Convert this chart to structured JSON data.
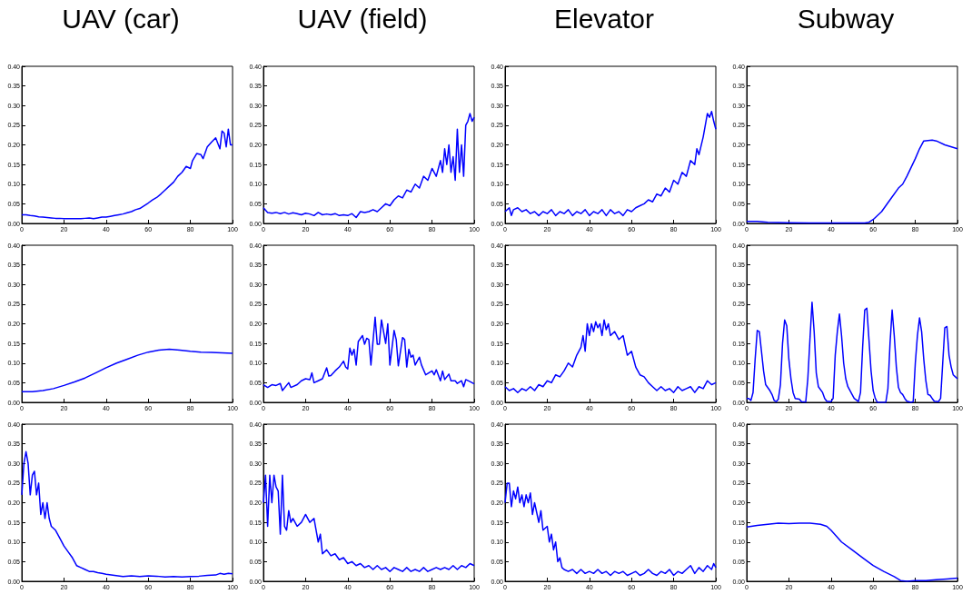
{
  "chart_data": [
    {
      "type": "line",
      "title": "UAV (car)",
      "color": "#0000ff",
      "xlim": [
        0,
        100
      ],
      "xticks": [
        0,
        20,
        40,
        60,
        80,
        100
      ],
      "ylim": [
        0,
        0.4
      ],
      "yticks": [
        {
          "value": 0,
          "label": "0.00"
        },
        0.05,
        {
          "value": 0.1,
          "label": "0.10"
        },
        0.15,
        {
          "value": 0.2,
          "label": "0.20"
        },
        0.25,
        {
          "value": 0.3,
          "label": "0.30"
        },
        0.35,
        {
          "value": 0.4,
          "label": "0.40"
        }
      ],
      "x": [
        0,
        2,
        4,
        6,
        8,
        10,
        12,
        14,
        16,
        18,
        20,
        22,
        24,
        26,
        28,
        30,
        32,
        34,
        36,
        38,
        40,
        42,
        44,
        46,
        48,
        50,
        52,
        54,
        56,
        58,
        60,
        62,
        64,
        66,
        68,
        70,
        72,
        74,
        76,
        78,
        80,
        81,
        83,
        85,
        86,
        88,
        90,
        92,
        94,
        95,
        96,
        97,
        98,
        99,
        100
      ],
      "values": [
        0.022,
        0.022,
        0.02,
        0.019,
        0.017,
        0.016,
        0.015,
        0.014,
        0.013,
        0.013,
        0.012,
        0.012,
        0.012,
        0.012,
        0.012,
        0.013,
        0.014,
        0.012,
        0.014,
        0.016,
        0.016,
        0.018,
        0.02,
        0.022,
        0.024,
        0.027,
        0.03,
        0.035,
        0.038,
        0.045,
        0.052,
        0.06,
        0.066,
        0.075,
        0.085,
        0.095,
        0.105,
        0.12,
        0.13,
        0.145,
        0.14,
        0.16,
        0.178,
        0.175,
        0.165,
        0.195,
        0.207,
        0.218,
        0.19,
        0.235,
        0.23,
        0.195,
        0.24,
        0.2,
        0.2
      ]
    },
    {
      "type": "line",
      "title": "UAV (field)",
      "color": "#0000ff",
      "xlim": [
        0,
        100
      ],
      "xticks": [
        0,
        20,
        40,
        60,
        80,
        100
      ],
      "ylim": [
        0,
        0.4
      ],
      "yticks": [
        {
          "value": 0,
          "label": "0.00"
        },
        0.05,
        {
          "value": 0.1,
          "label": "0.10"
        },
        0.15,
        {
          "value": 0.2,
          "label": "0.20"
        },
        0.25,
        {
          "value": 0.3,
          "label": "0.30"
        },
        0.35,
        {
          "value": 0.4,
          "label": "0.40"
        }
      ],
      "x": [
        0,
        2,
        4,
        6,
        8,
        10,
        12,
        14,
        16,
        18,
        20,
        22,
        24,
        26,
        28,
        30,
        32,
        34,
        36,
        38,
        40,
        42,
        44,
        46,
        48,
        50,
        52,
        54,
        56,
        58,
        60,
        62,
        64,
        66,
        68,
        70,
        72,
        74,
        76,
        78,
        80,
        82,
        84,
        85,
        86,
        87,
        88,
        89,
        90,
        91,
        92,
        93,
        94,
        95,
        96,
        97,
        98,
        99,
        100
      ],
      "values": [
        0.04,
        0.028,
        0.026,
        0.028,
        0.025,
        0.028,
        0.024,
        0.027,
        0.025,
        0.022,
        0.026,
        0.024,
        0.02,
        0.028,
        0.022,
        0.024,
        0.022,
        0.025,
        0.02,
        0.022,
        0.02,
        0.025,
        0.015,
        0.03,
        0.028,
        0.03,
        0.035,
        0.03,
        0.04,
        0.05,
        0.045,
        0.06,
        0.07,
        0.065,
        0.085,
        0.08,
        0.1,
        0.09,
        0.12,
        0.11,
        0.14,
        0.12,
        0.16,
        0.13,
        0.19,
        0.15,
        0.2,
        0.13,
        0.17,
        0.11,
        0.24,
        0.13,
        0.2,
        0.12,
        0.25,
        0.26,
        0.28,
        0.26,
        0.27
      ]
    },
    {
      "type": "line",
      "title": "Elevator",
      "color": "#0000ff",
      "xlim": [
        0,
        100
      ],
      "xticks": [
        0,
        20,
        40,
        60,
        80,
        100
      ],
      "ylim": [
        0,
        0.4
      ],
      "yticks": [
        {
          "value": 0,
          "label": "0.00"
        },
        0.05,
        {
          "value": 0.1,
          "label": "0.10"
        },
        0.15,
        {
          "value": 0.2,
          "label": "0.20"
        },
        0.25,
        {
          "value": 0.3,
          "label": "0.30"
        },
        0.35,
        {
          "value": 0.4,
          "label": "0.40"
        }
      ],
      "x": [
        0,
        2,
        3,
        4,
        6,
        8,
        10,
        12,
        14,
        16,
        18,
        20,
        22,
        24,
        26,
        28,
        30,
        32,
        34,
        36,
        38,
        40,
        42,
        44,
        46,
        48,
        50,
        52,
        54,
        56,
        58,
        60,
        62,
        64,
        66,
        68,
        70,
        72,
        74,
        76,
        78,
        80,
        82,
        84,
        86,
        88,
        90,
        91,
        92,
        94,
        96,
        97,
        98,
        99,
        100
      ],
      "values": [
        0.03,
        0.04,
        0.02,
        0.035,
        0.04,
        0.03,
        0.035,
        0.025,
        0.03,
        0.02,
        0.03,
        0.025,
        0.035,
        0.02,
        0.03,
        0.025,
        0.035,
        0.02,
        0.03,
        0.025,
        0.035,
        0.02,
        0.03,
        0.025,
        0.035,
        0.02,
        0.035,
        0.025,
        0.03,
        0.02,
        0.035,
        0.03,
        0.04,
        0.045,
        0.05,
        0.06,
        0.055,
        0.075,
        0.07,
        0.09,
        0.08,
        0.11,
        0.1,
        0.13,
        0.12,
        0.16,
        0.15,
        0.19,
        0.175,
        0.22,
        0.28,
        0.27,
        0.285,
        0.26,
        0.24
      ]
    },
    {
      "type": "line",
      "title": "Subway",
      "color": "#0000ff",
      "xlim": [
        0,
        100
      ],
      "xticks": [
        0,
        20,
        40,
        60,
        80,
        100
      ],
      "ylim": [
        0,
        0.4
      ],
      "yticks": [
        {
          "value": 0,
          "label": "0.00"
        },
        0.05,
        {
          "value": 0.1,
          "label": "0.10"
        },
        0.15,
        {
          "value": 0.2,
          "label": "0.20"
        },
        0.25,
        {
          "value": 0.3,
          "label": "0.30"
        },
        0.35,
        {
          "value": 0.4,
          "label": "0.40"
        }
      ],
      "x": [
        0,
        5,
        10,
        20,
        30,
        40,
        50,
        56,
        58,
        60,
        64,
        68,
        72,
        74,
        76,
        80,
        82,
        84,
        88,
        90,
        94,
        100
      ],
      "values": [
        0.005,
        0.005,
        0.003,
        0.002,
        0.001,
        0.001,
        0.001,
        0.001,
        0.003,
        0.01,
        0.03,
        0.06,
        0.09,
        0.1,
        0.12,
        0.165,
        0.19,
        0.21,
        0.212,
        0.21,
        0.2,
        0.19
      ]
    },
    {
      "type": "line",
      "color": "#0000ff",
      "xlim": [
        0,
        100
      ],
      "xticks": [
        0,
        20,
        40,
        60,
        80,
        100
      ],
      "ylim": [
        0,
        0.4
      ],
      "yticks": [
        {
          "value": 0,
          "label": "0.00"
        },
        0.05,
        {
          "value": 0.1,
          "label": "0.10"
        },
        0.15,
        {
          "value": 0.2,
          "label": "0.20"
        },
        0.25,
        {
          "value": 0.3,
          "label": "0.30"
        },
        0.35,
        {
          "value": 0.4,
          "label": "0.40"
        }
      ],
      "x": [
        0,
        5,
        10,
        15,
        20,
        25,
        30,
        35,
        40,
        45,
        50,
        55,
        60,
        65,
        70,
        75,
        80,
        85,
        90,
        95,
        100
      ],
      "values": [
        0.027,
        0.027,
        0.03,
        0.035,
        0.043,
        0.052,
        0.062,
        0.075,
        0.088,
        0.1,
        0.11,
        0.12,
        0.128,
        0.133,
        0.135,
        0.133,
        0.13,
        0.128,
        0.127,
        0.126,
        0.125
      ]
    },
    {
      "type": "line",
      "color": "#0000ff",
      "xlim": [
        0,
        100
      ],
      "xticks": [
        0,
        20,
        40,
        60,
        80,
        100
      ],
      "ylim": [
        0,
        0.4
      ],
      "yticks": [
        {
          "value": 0,
          "label": "0.00"
        },
        0.05,
        {
          "value": 0.1,
          "label": "0.10"
        },
        0.15,
        {
          "value": 0.2,
          "label": "0.20"
        },
        0.25,
        {
          "value": 0.3,
          "label": "0.30"
        },
        0.35,
        {
          "value": 0.4,
          "label": "0.40"
        }
      ],
      "x": [
        0,
        2,
        4,
        6,
        8,
        9,
        12,
        13,
        16,
        18,
        20,
        22,
        23,
        24,
        26,
        28,
        30,
        31,
        32,
        34,
        36,
        38,
        39,
        40,
        41,
        42,
        43,
        44,
        45,
        47,
        48,
        49,
        50,
        51,
        53,
        54,
        55,
        56,
        58,
        59,
        60,
        62,
        63,
        64,
        66,
        67,
        68,
        69,
        70,
        71,
        72,
        74,
        75,
        77,
        80,
        81,
        82,
        84,
        85,
        86,
        88,
        89,
        91,
        92,
        94,
        95,
        96,
        98,
        100
      ],
      "values": [
        0.045,
        0.038,
        0.045,
        0.043,
        0.048,
        0.03,
        0.05,
        0.038,
        0.045,
        0.055,
        0.06,
        0.058,
        0.075,
        0.05,
        0.055,
        0.06,
        0.088,
        0.067,
        0.068,
        0.08,
        0.09,
        0.105,
        0.09,
        0.085,
        0.138,
        0.12,
        0.135,
        0.095,
        0.155,
        0.17,
        0.148,
        0.163,
        0.16,
        0.095,
        0.217,
        0.148,
        0.148,
        0.21,
        0.15,
        0.2,
        0.095,
        0.183,
        0.16,
        0.093,
        0.165,
        0.16,
        0.09,
        0.135,
        0.115,
        0.12,
        0.095,
        0.115,
        0.095,
        0.07,
        0.08,
        0.07,
        0.083,
        0.055,
        0.08,
        0.058,
        0.072,
        0.055,
        0.055,
        0.048,
        0.055,
        0.04,
        0.058,
        0.053,
        0.047
      ]
    },
    {
      "type": "line",
      "color": "#0000ff",
      "xlim": [
        0,
        100
      ],
      "xticks": [
        0,
        20,
        40,
        60,
        80,
        100
      ],
      "ylim": [
        0,
        0.4
      ],
      "yticks": [
        {
          "value": 0,
          "label": "0.00"
        },
        0.05,
        {
          "value": 0.1,
          "label": "0.10"
        },
        0.15,
        {
          "value": 0.2,
          "label": "0.20"
        },
        0.25,
        {
          "value": 0.3,
          "label": "0.30"
        },
        0.35,
        {
          "value": 0.4,
          "label": "0.40"
        }
      ],
      "x": [
        0,
        2,
        4,
        6,
        8,
        10,
        12,
        14,
        16,
        18,
        20,
        22,
        24,
        26,
        28,
        30,
        32,
        34,
        36,
        37,
        38,
        39,
        40,
        41,
        42,
        43,
        44,
        45,
        46,
        47,
        48,
        49,
        50,
        52,
        54,
        56,
        58,
        60,
        62,
        64,
        66,
        68,
        70,
        72,
        74,
        76,
        78,
        80,
        82,
        84,
        86,
        88,
        90,
        92,
        94,
        96,
        98,
        100
      ],
      "values": [
        0.04,
        0.03,
        0.035,
        0.025,
        0.035,
        0.03,
        0.04,
        0.03,
        0.045,
        0.04,
        0.055,
        0.05,
        0.07,
        0.065,
        0.08,
        0.1,
        0.09,
        0.12,
        0.14,
        0.17,
        0.13,
        0.2,
        0.17,
        0.2,
        0.18,
        0.205,
        0.19,
        0.2,
        0.17,
        0.21,
        0.185,
        0.2,
        0.17,
        0.18,
        0.16,
        0.17,
        0.12,
        0.13,
        0.09,
        0.07,
        0.065,
        0.05,
        0.04,
        0.03,
        0.04,
        0.03,
        0.035,
        0.025,
        0.04,
        0.03,
        0.035,
        0.04,
        0.025,
        0.04,
        0.035,
        0.055,
        0.045,
        0.05
      ]
    },
    {
      "type": "line",
      "color": "#0000ff",
      "xlim": [
        0,
        100
      ],
      "xticks": [
        0,
        20,
        40,
        60,
        80,
        100
      ],
      "ylim": [
        0,
        0.4
      ],
      "yticks": [
        {
          "value": 0,
          "label": "0.00"
        },
        0.05,
        {
          "value": 0.1,
          "label": "0.10"
        },
        0.15,
        {
          "value": 0.2,
          "label": "0.20"
        },
        0.25,
        {
          "value": 0.3,
          "label": "0.30"
        },
        0.35,
        {
          "value": 0.4,
          "label": "0.40"
        }
      ],
      "x": [
        0,
        1,
        2,
        3,
        4,
        5,
        6,
        7,
        8,
        9,
        11,
        12,
        13,
        14,
        15,
        16,
        17,
        18,
        19,
        20,
        21,
        22,
        23,
        25,
        26,
        28,
        29,
        30,
        31,
        32,
        33,
        34,
        36,
        37,
        38,
        40,
        41,
        42,
        43,
        44,
        45,
        46,
        47,
        48,
        50,
        51,
        53,
        54,
        55,
        56,
        57,
        58,
        59,
        60,
        61,
        62,
        66,
        67,
        68,
        69,
        70,
        71,
        72,
        73,
        74,
        75,
        76,
        78,
        79,
        80,
        81,
        82,
        83,
        84,
        85,
        86,
        87,
        88,
        89,
        91,
        92,
        93,
        94,
        95,
        96,
        97,
        98,
        99,
        100
      ],
      "values": [
        0.01,
        0.01,
        0.005,
        0.025,
        0.11,
        0.183,
        0.18,
        0.13,
        0.08,
        0.045,
        0.03,
        0.02,
        0.005,
        0.002,
        0.008,
        0.045,
        0.15,
        0.21,
        0.195,
        0.11,
        0.06,
        0.025,
        0.01,
        0.008,
        0.002,
        0.001,
        0.06,
        0.16,
        0.255,
        0.18,
        0.075,
        0.04,
        0.025,
        0.01,
        0.003,
        0.002,
        0.01,
        0.12,
        0.18,
        0.225,
        0.17,
        0.1,
        0.06,
        0.04,
        0.02,
        0.01,
        0.002,
        0.025,
        0.14,
        0.235,
        0.24,
        0.16,
        0.08,
        0.03,
        0.01,
        0,
        0,
        0.035,
        0.15,
        0.235,
        0.17,
        0.09,
        0.038,
        0.025,
        0.02,
        0.01,
        0.003,
        0,
        0.002,
        0.1,
        0.17,
        0.215,
        0.18,
        0.11,
        0.055,
        0.02,
        0.018,
        0.01,
        0.003,
        0.002,
        0.01,
        0.1,
        0.19,
        0.193,
        0.12,
        0.09,
        0.07,
        0.065,
        0.06
      ]
    },
    {
      "type": "line",
      "color": "#0000ff",
      "xlim": [
        0,
        100
      ],
      "xticks": [
        0,
        20,
        40,
        60,
        80,
        100
      ],
      "ylim": [
        0,
        0.4
      ],
      "yticks": [
        {
          "value": 0,
          "label": "0.00"
        },
        0.05,
        {
          "value": 0.1,
          "label": "0.10"
        },
        0.15,
        {
          "value": 0.2,
          "label": "0.20"
        },
        0.25,
        {
          "value": 0.3,
          "label": "0.30"
        },
        0.35,
        {
          "value": 0.4,
          "label": "0.40"
        }
      ],
      "x": [
        0,
        1,
        2,
        3,
        4,
        5,
        6,
        7,
        8,
        9,
        10,
        11,
        12,
        13,
        14,
        16,
        18,
        20,
        22,
        24,
        25,
        26,
        28,
        30,
        32,
        34,
        36,
        38,
        40,
        44,
        48,
        52,
        56,
        60,
        64,
        68,
        72,
        76,
        80,
        84,
        88,
        92,
        94,
        96,
        98,
        100
      ],
      "values": [
        0.22,
        0.3,
        0.33,
        0.3,
        0.22,
        0.27,
        0.28,
        0.22,
        0.25,
        0.17,
        0.2,
        0.16,
        0.2,
        0.16,
        0.14,
        0.13,
        0.11,
        0.09,
        0.075,
        0.06,
        0.05,
        0.04,
        0.035,
        0.03,
        0.025,
        0.025,
        0.022,
        0.02,
        0.018,
        0.015,
        0.012,
        0.014,
        0.012,
        0.014,
        0.013,
        0.011,
        0.012,
        0.011,
        0.012,
        0.013,
        0.015,
        0.016,
        0.02,
        0.018,
        0.02,
        0.019
      ]
    },
    {
      "type": "line",
      "color": "#0000ff",
      "xlim": [
        0,
        100
      ],
      "xticks": [
        0,
        20,
        40,
        60,
        80,
        100
      ],
      "ylim": [
        0,
        0.4
      ],
      "yticks": [
        {
          "value": 0,
          "label": "0.00"
        },
        0.05,
        {
          "value": 0.1,
          "label": "0.10"
        },
        0.15,
        {
          "value": 0.2,
          "label": "0.20"
        },
        0.25,
        {
          "value": 0.3,
          "label": "0.30"
        },
        0.35,
        {
          "value": 0.4,
          "label": "0.40"
        }
      ],
      "x": [
        0,
        1,
        2,
        3,
        4,
        5,
        6,
        7,
        8,
        9,
        10,
        11,
        12,
        13,
        14,
        16,
        18,
        20,
        22,
        24,
        25,
        26,
        27,
        28,
        30,
        32,
        34,
        36,
        38,
        40,
        42,
        44,
        46,
        48,
        50,
        52,
        54,
        56,
        58,
        60,
        62,
        64,
        66,
        68,
        70,
        72,
        74,
        76,
        78,
        80,
        82,
        84,
        86,
        88,
        90,
        92,
        94,
        96,
        98,
        100
      ],
      "values": [
        0.2,
        0.27,
        0.14,
        0.27,
        0.2,
        0.27,
        0.24,
        0.23,
        0.12,
        0.27,
        0.14,
        0.13,
        0.18,
        0.15,
        0.16,
        0.14,
        0.15,
        0.17,
        0.15,
        0.16,
        0.13,
        0.1,
        0.12,
        0.07,
        0.08,
        0.065,
        0.07,
        0.055,
        0.06,
        0.045,
        0.05,
        0.04,
        0.045,
        0.035,
        0.04,
        0.03,
        0.04,
        0.03,
        0.035,
        0.025,
        0.035,
        0.03,
        0.025,
        0.035,
        0.025,
        0.03,
        0.025,
        0.035,
        0.025,
        0.03,
        0.035,
        0.03,
        0.035,
        0.03,
        0.04,
        0.03,
        0.04,
        0.035,
        0.045,
        0.04
      ]
    },
    {
      "type": "line",
      "color": "#0000ff",
      "xlim": [
        0,
        100
      ],
      "xticks": [
        0,
        20,
        40,
        60,
        80,
        100
      ],
      "ylim": [
        0,
        0.4
      ],
      "yticks": [
        {
          "value": 0,
          "label": "0.00"
        },
        0.05,
        {
          "value": 0.1,
          "label": "0.10"
        },
        0.15,
        {
          "value": 0.2,
          "label": "0.20"
        },
        0.25,
        {
          "value": 0.3,
          "label": "0.30"
        },
        0.35,
        {
          "value": 0.4,
          "label": "0.40"
        }
      ],
      "x": [
        0,
        1,
        2,
        3,
        4,
        5,
        6,
        7,
        8,
        9,
        10,
        11,
        12,
        13,
        14,
        16,
        17,
        18,
        20,
        21,
        22,
        23,
        24,
        25,
        26,
        27,
        28,
        30,
        32,
        34,
        36,
        38,
        40,
        42,
        44,
        46,
        48,
        50,
        52,
        54,
        56,
        58,
        60,
        62,
        64,
        66,
        68,
        70,
        72,
        74,
        76,
        78,
        80,
        82,
        84,
        86,
        88,
        90,
        92,
        94,
        96,
        98,
        99,
        100
      ],
      "values": [
        0.2,
        0.25,
        0.25,
        0.19,
        0.23,
        0.21,
        0.24,
        0.2,
        0.22,
        0.19,
        0.22,
        0.2,
        0.225,
        0.17,
        0.2,
        0.15,
        0.18,
        0.13,
        0.14,
        0.1,
        0.12,
        0.08,
        0.1,
        0.05,
        0.06,
        0.035,
        0.03,
        0.025,
        0.03,
        0.02,
        0.03,
        0.02,
        0.025,
        0.02,
        0.03,
        0.02,
        0.025,
        0.015,
        0.025,
        0.02,
        0.025,
        0.015,
        0.02,
        0.025,
        0.015,
        0.02,
        0.03,
        0.02,
        0.015,
        0.025,
        0.02,
        0.03,
        0.015,
        0.025,
        0.02,
        0.03,
        0.04,
        0.02,
        0.035,
        0.025,
        0.04,
        0.03,
        0.045,
        0.035
      ]
    },
    {
      "type": "line",
      "color": "#0000ff",
      "xlim": [
        0,
        100
      ],
      "xticks": [
        0,
        20,
        40,
        60,
        80,
        100
      ],
      "ylim": [
        0,
        0.4
      ],
      "yticks": [
        {
          "value": 0,
          "label": "0.00"
        },
        0.05,
        {
          "value": 0.1,
          "label": "0.10"
        },
        0.15,
        {
          "value": 0.2,
          "label": "0.20"
        },
        0.25,
        {
          "value": 0.3,
          "label": "0.30"
        },
        0.35,
        {
          "value": 0.4,
          "label": "0.40"
        }
      ],
      "x": [
        0,
        5,
        10,
        15,
        20,
        25,
        30,
        35,
        38,
        40,
        45,
        50,
        55,
        60,
        65,
        70,
        73,
        76,
        80,
        85,
        90,
        95,
        100
      ],
      "values": [
        0.138,
        0.142,
        0.145,
        0.148,
        0.147,
        0.148,
        0.148,
        0.145,
        0.14,
        0.13,
        0.1,
        0.08,
        0.06,
        0.04,
        0.025,
        0.012,
        0.002,
        0,
        0.002,
        0.002,
        0.004,
        0.006,
        0.008
      ]
    }
  ]
}
